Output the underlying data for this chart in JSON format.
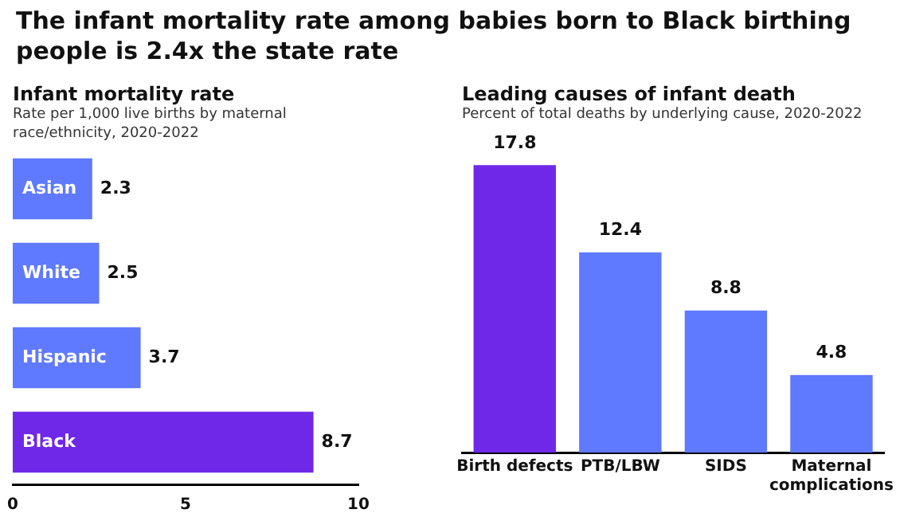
{
  "chart_data": [
    {
      "type": "other",
      "title": "The infant mortality rate among babies born to Black birthing people is 2.4x the state rate"
    },
    {
      "type": "bar",
      "orientation": "horizontal",
      "title": "Infant mortality rate",
      "subtitle": "Rate per 1,000 live births by maternal race/ethnicity, 2020-2022",
      "categories": [
        "Asian",
        "White",
        "Hispanic",
        "Black"
      ],
      "values": [
        2.3,
        2.5,
        3.7,
        8.7
      ],
      "colors": [
        "#5f79ff",
        "#5f79ff",
        "#5f79ff",
        "#7028e8"
      ],
      "xlim": [
        0,
        10
      ],
      "xticks": [
        0,
        5,
        10
      ],
      "grid": false,
      "data_labels": true
    },
    {
      "type": "bar",
      "title": "Leading causes of infant death",
      "subtitle": "Percent of total deaths by underlying cause, 2020-2022",
      "categories": [
        "Birth defects",
        "PTB/LBW",
        "SIDS",
        "Maternal complications"
      ],
      "values": [
        17.8,
        12.4,
        8.8,
        4.8
      ],
      "colors": [
        "#7028e8",
        "#5f79ff",
        "#5f79ff",
        "#5f79ff"
      ],
      "grid": false,
      "data_labels": true
    }
  ]
}
